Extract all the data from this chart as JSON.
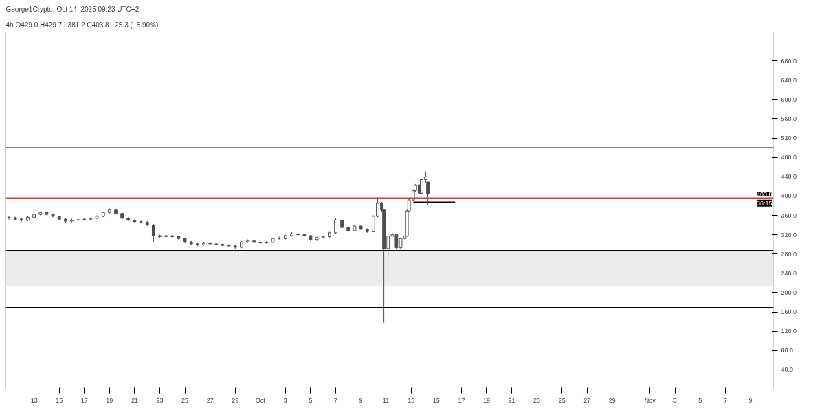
{
  "chart_data": {
    "type": "candlestick",
    "title": "George1Crypto, Oct 14, 2025 09:23 UTC+2",
    "subtitle": "4h  O429.0  H429.7  L381.2  C403.8  −25.3 (−5.90%)",
    "annotations": [
      "403.8",
      "36:15"
    ],
    "x": [
      "2025-09-11T00:00",
      "2025-09-11T12:00",
      "2025-09-12T00:00",
      "2025-09-12T12:00",
      "2025-09-13T00:00",
      "2025-09-13T12:00",
      "2025-09-14T00:00",
      "2025-09-14T12:00",
      "2025-09-15T00:00",
      "2025-09-15T12:00",
      "2025-09-16T00:00",
      "2025-09-16T12:00",
      "2025-09-17T00:00",
      "2025-09-17T12:00",
      "2025-09-18T00:00",
      "2025-09-18T12:00",
      "2025-09-19T00:00",
      "2025-09-19T12:00",
      "2025-09-20T00:00",
      "2025-09-20T12:00",
      "2025-09-21T00:00",
      "2025-09-21T12:00",
      "2025-09-22T00:00",
      "2025-09-22T12:00",
      "2025-09-23T00:00",
      "2025-09-23T12:00",
      "2025-09-24T00:00",
      "2025-09-24T12:00",
      "2025-09-25T00:00",
      "2025-09-25T12:00",
      "2025-09-26T00:00",
      "2025-09-26T12:00",
      "2025-09-27T00:00",
      "2025-09-27T12:00",
      "2025-09-28T00:00",
      "2025-09-28T12:00",
      "2025-09-29T00:00",
      "2025-09-29T12:00",
      "2025-09-30T00:00",
      "2025-09-30T12:00",
      "2025-10-01T00:00",
      "2025-10-01T12:00",
      "2025-10-02T00:00",
      "2025-10-02T12:00",
      "2025-10-03T00:00",
      "2025-10-03T12:00",
      "2025-10-04T00:00",
      "2025-10-04T12:00",
      "2025-10-05T00:00",
      "2025-10-05T12:00",
      "2025-10-06T00:00",
      "2025-10-06T12:00",
      "2025-10-07T00:00",
      "2025-10-07T12:00",
      "2025-10-08T00:00",
      "2025-10-08T12:00",
      "2025-10-09T00:00",
      "2025-10-09T12:00",
      "2025-10-10T00:00",
      "2025-10-10T08:00",
      "2025-10-10T16:00",
      "2025-10-10T20:00",
      "2025-10-11T04:00",
      "2025-10-11T12:00",
      "2025-10-11T20:00",
      "2025-10-12T04:00",
      "2025-10-12T12:00",
      "2025-10-12T16:00",
      "2025-10-12T20:00",
      "2025-10-13T04:00",
      "2025-10-13T08:00",
      "2025-10-13T16:00",
      "2025-10-13T20:00",
      "2025-10-14T04:00",
      "2025-10-14T08:00"
    ],
    "ohlc": [
      [
        356,
        358,
        350,
        355
      ],
      [
        355,
        357,
        349,
        352
      ],
      [
        352,
        354,
        347,
        350
      ],
      [
        350,
        358,
        348,
        356
      ],
      [
        356,
        364,
        354,
        362
      ],
      [
        362,
        368,
        360,
        366
      ],
      [
        366,
        367,
        360,
        362
      ],
      [
        362,
        364,
        356,
        358
      ],
      [
        358,
        359,
        350,
        352
      ],
      [
        352,
        354,
        345,
        348
      ],
      [
        348,
        353,
        346,
        350
      ],
      [
        350,
        353,
        348,
        351
      ],
      [
        351,
        355,
        349,
        352
      ],
      [
        352,
        356,
        350,
        354
      ],
      [
        354,
        360,
        352,
        358
      ],
      [
        358,
        368,
        356,
        366
      ],
      [
        366,
        374,
        364,
        371
      ],
      [
        371,
        373,
        362,
        364
      ],
      [
        364,
        366,
        352,
        354
      ],
      [
        354,
        356,
        348,
        350
      ],
      [
        350,
        352,
        345,
        347
      ],
      [
        347,
        349,
        344,
        346
      ],
      [
        346,
        348,
        338,
        340
      ],
      [
        340,
        342,
        305,
        318
      ],
      [
        318,
        320,
        313,
        316
      ],
      [
        316,
        321,
        314,
        318
      ],
      [
        318,
        320,
        313,
        316
      ],
      [
        316,
        318,
        309,
        312
      ],
      [
        312,
        314,
        302,
        305
      ],
      [
        305,
        307,
        298,
        301
      ],
      [
        301,
        303,
        296,
        299
      ],
      [
        299,
        305,
        297,
        302
      ],
      [
        302,
        304,
        299,
        301
      ],
      [
        301,
        303,
        298,
        300
      ],
      [
        300,
        302,
        296,
        298
      ],
      [
        298,
        300,
        295,
        297
      ],
      [
        297,
        299,
        290,
        294
      ],
      [
        294,
        307,
        292,
        305
      ],
      [
        305,
        310,
        303,
        307
      ],
      [
        307,
        309,
        302,
        304
      ],
      [
        304,
        306,
        301,
        303
      ],
      [
        303,
        307,
        301,
        304
      ],
      [
        304,
        314,
        303,
        312
      ],
      [
        312,
        316,
        310,
        312
      ],
      [
        312,
        320,
        310,
        318
      ],
      [
        318,
        325,
        316,
        322
      ],
      [
        322,
        324,
        318,
        320
      ],
      [
        320,
        322,
        316,
        318
      ],
      [
        318,
        319,
        306,
        310
      ],
      [
        310,
        316,
        307,
        314
      ],
      [
        314,
        318,
        312,
        316
      ],
      [
        316,
        326,
        314,
        324
      ],
      [
        324,
        355,
        322,
        350
      ],
      [
        350,
        352,
        333,
        335
      ],
      [
        335,
        338,
        326,
        328
      ],
      [
        328,
        341,
        327,
        338
      ],
      [
        338,
        340,
        329,
        331
      ],
      [
        331,
        333,
        324,
        326
      ],
      [
        326,
        360,
        325,
        358
      ],
      [
        358,
        397,
        356,
        385
      ],
      [
        385,
        388,
        368,
        371
      ],
      [
        371,
        372,
        138,
        291
      ],
      [
        291,
        322,
        277,
        317
      ],
      [
        317,
        324,
        315,
        320
      ],
      [
        320,
        322,
        289,
        293
      ],
      [
        293,
        314,
        290,
        312
      ],
      [
        312,
        319,
        310,
        317
      ],
      [
        317,
        372,
        316,
        369
      ],
      [
        369,
        395,
        367,
        392
      ],
      [
        392,
        414,
        390,
        411
      ],
      [
        411,
        425,
        409,
        422
      ],
      [
        422,
        424,
        404,
        406
      ],
      [
        406,
        436,
        404,
        434
      ],
      [
        434,
        451,
        428,
        440
      ],
      [
        429,
        429.7,
        381.2,
        403.8
      ]
    ],
    "color": "#4d4d4d",
    "series": [
      {
        "type": "line",
        "color": "#000000",
        "x": [
          "2025-10-13T04:00",
          "2025-10-16T12:00"
        ],
        "values": [
          387,
          387
        ]
      }
    ],
    "ref_lines": [
      {
        "axis": "y",
        "value": 500,
        "color": "#000000"
      },
      {
        "axis": "y",
        "value": 396,
        "color": "#e53935"
      },
      {
        "axis": "y",
        "value": 287,
        "color": "#000000"
      },
      {
        "axis": "y",
        "value": 169,
        "color": "#000000"
      }
    ],
    "bands": [
      {
        "axis": "y",
        "from": 214,
        "to": 287,
        "color": "#ececec"
      }
    ],
    "xlim": [
      "2025-09-10T18:00",
      "2025-11-10T20:00"
    ],
    "xticks": [
      {
        "value": "2025-09-13",
        "label": "13"
      },
      {
        "value": "2025-09-15",
        "label": "15"
      },
      {
        "value": "2025-09-17",
        "label": "17"
      },
      {
        "value": "2025-09-19",
        "label": "19"
      },
      {
        "value": "2025-09-21",
        "label": "21"
      },
      {
        "value": "2025-09-23",
        "label": "23"
      },
      {
        "value": "2025-09-25",
        "label": "25"
      },
      {
        "value": "2025-09-27",
        "label": "27"
      },
      {
        "value": "2025-09-29",
        "label": "29"
      },
      {
        "value": "2025-10-01",
        "label": "Oct"
      },
      {
        "value": "2025-10-03",
        "label": "3"
      },
      {
        "value": "2025-10-05",
        "label": "5"
      },
      {
        "value": "2025-10-07",
        "label": "7"
      },
      {
        "value": "2025-10-09",
        "label": "9"
      },
      {
        "value": "2025-10-11",
        "label": "11"
      },
      {
        "value": "2025-10-13",
        "label": "13"
      },
      {
        "value": "2025-10-15",
        "label": "15"
      },
      {
        "value": "2025-10-17",
        "label": "17"
      },
      {
        "value": "2025-10-19",
        "label": "19"
      },
      {
        "value": "2025-10-21",
        "label": "21"
      },
      {
        "value": "2025-10-23",
        "label": "23"
      },
      {
        "value": "2025-10-25",
        "label": "25"
      },
      {
        "value": "2025-10-27",
        "label": "27"
      },
      {
        "value": "2025-10-29",
        "label": "29"
      },
      {
        "value": "2025-11-01",
        "label": "Nov"
      },
      {
        "value": "2025-11-03",
        "label": "3"
      },
      {
        "value": "2025-11-05",
        "label": "5"
      },
      {
        "value": "2025-11-07",
        "label": "7"
      },
      {
        "value": "2025-11-09",
        "label": "9"
      }
    ],
    "ylim": [
      0,
      740
    ],
    "yticks": [
      {
        "value": 40,
        "label": "40.0"
      },
      {
        "value": 80,
        "label": "80.0"
      },
      {
        "value": 120,
        "label": "120.0"
      },
      {
        "value": 160,
        "label": "160.0"
      },
      {
        "value": 200,
        "label": "200.0"
      },
      {
        "value": 240,
        "label": "240.0"
      },
      {
        "value": 280,
        "label": "280.0"
      },
      {
        "value": 320,
        "label": "320.0"
      },
      {
        "value": 360,
        "label": "360.0"
      },
      {
        "value": 400,
        "label": "400.0"
      },
      {
        "value": 440,
        "label": "440.0"
      },
      {
        "value": 480,
        "label": "480.0"
      },
      {
        "value": 520,
        "label": "520.0"
      },
      {
        "value": 560,
        "label": "560.0"
      },
      {
        "value": 600,
        "label": "600.0"
      },
      {
        "value": 640,
        "label": "640.0"
      },
      {
        "value": 680,
        "label": "680.0"
      }
    ],
    "grid": false
  }
}
